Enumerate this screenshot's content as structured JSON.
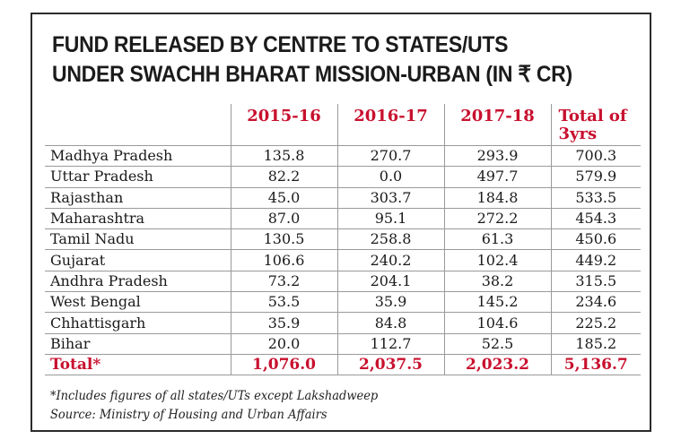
{
  "chart_data": {
    "type": "table",
    "title_lines": [
      "FUND RELEASED BY CENTRE TO STATES/UTS",
      "UNDER SWACHH BHARAT MISSION-URBAN (IN ₹ CR)"
    ],
    "columns": [
      "2015-16",
      "2016-17",
      "2017-18",
      "Total of 3yrs"
    ],
    "rows": [
      {
        "state": "Madhya Pradesh",
        "values": [
          "135.8",
          "270.7",
          "293.9",
          "700.3"
        ]
      },
      {
        "state": "Uttar Pradesh",
        "values": [
          "82.2",
          "0.0",
          "497.7",
          "579.9"
        ]
      },
      {
        "state": "Rajasthan",
        "values": [
          "45.0",
          "303.7",
          "184.8",
          "533.5"
        ]
      },
      {
        "state": "Maharashtra",
        "values": [
          "87.0",
          "95.1",
          "272.2",
          "454.3"
        ]
      },
      {
        "state": "Tamil Nadu",
        "values": [
          "130.5",
          "258.8",
          "61.3",
          "450.6"
        ]
      },
      {
        "state": "Gujarat",
        "values": [
          "106.6",
          "240.2",
          "102.4",
          "449.2"
        ]
      },
      {
        "state": "Andhra Pradesh",
        "values": [
          "73.2",
          "204.1",
          "38.2",
          "315.5"
        ]
      },
      {
        "state": "West Bengal",
        "values": [
          "53.5",
          "35.9",
          "145.2",
          "234.6"
        ]
      },
      {
        "state": "Chhattisgarh",
        "values": [
          "35.9",
          "84.8",
          "104.6",
          "225.2"
        ]
      },
      {
        "state": "Bihar",
        "values": [
          "20.0",
          "112.7",
          "52.5",
          "185.2"
        ]
      }
    ],
    "total": {
      "label": "Total*",
      "values": [
        "1,076.0",
        "2,037.5",
        "2,023.2",
        "5,136.7"
      ]
    },
    "footnote": "*Includes figures of all states/UTs except Lakshadweep",
    "source": "Source: Ministry of Housing and Urban Affairs",
    "accent_color": "#c8102e",
    "border_color": "#2b2b2b"
  }
}
